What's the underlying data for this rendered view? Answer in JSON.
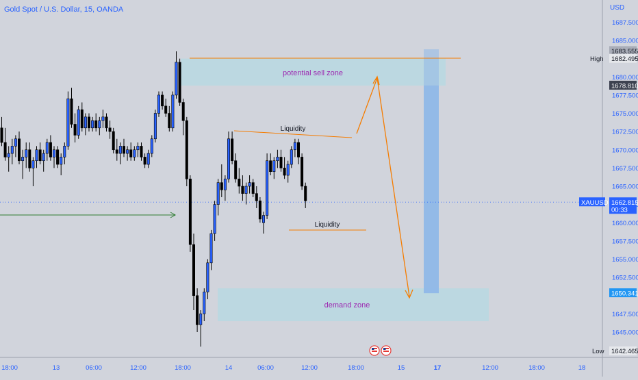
{
  "chart_data": {
    "type": "candlestick",
    "title": "Gold Spot / U.S. Dollar, 15, OANDA",
    "currency": "USD",
    "symbol": "XAUUSD",
    "ylim": [
      1642.5,
      1688.5
    ],
    "y_ticks": [
      "1687.500",
      "1685.000",
      "1680.000",
      "1677.500",
      "1675.000",
      "1672.500",
      "1670.000",
      "1667.500",
      "1665.000",
      "1662.500",
      "1660.000",
      "1657.500",
      "1655.000",
      "1652.500",
      "1647.500",
      "1645.000"
    ],
    "x_ticks": [
      "18:00",
      "13",
      "06:00",
      "12:00",
      "18:00",
      "14",
      "06:00",
      "12:00",
      "18:00",
      "15",
      "17",
      "12:00",
      "18:00",
      "18"
    ],
    "price_labels": {
      "top_value": "1683.555",
      "high_label": "High",
      "high_value": "1682.495",
      "target_value": "1678.810",
      "current_symbol": "XAUUSD",
      "current_value": "1662.815",
      "countdown": "00:33",
      "demand_value": "1650.341",
      "low_label": "Low",
      "low_value": "1642.465"
    },
    "annotations": {
      "sell_zone": "potential sell zone",
      "demand_zone": "demand zone",
      "liquidity_top": "Liquidity",
      "liquidity_bottom": "Liquidity"
    },
    "colors": {
      "background": "#d1d4dc",
      "candle_up": "#2962ff",
      "candle_down": "#000000",
      "zone_fill": "#b9d8e2",
      "orange": "#f57c00",
      "zone_text": "#9c27b0",
      "axis_text": "#2962ff",
      "green_arrow": "#2e7d32",
      "target_bar": "#90b8e8"
    },
    "candles": [
      [
        1673,
        1674.5,
        1670.5,
        1671
      ],
      [
        1671,
        1673,
        1668.5,
        1669
      ],
      [
        1669,
        1670.5,
        1667,
        1669.5
      ],
      [
        1669.5,
        1671.5,
        1668,
        1670.5
      ],
      [
        1670.5,
        1672,
        1669,
        1671.5
      ],
      [
        1671.5,
        1672.5,
        1668,
        1668.5
      ],
      [
        1668.5,
        1670,
        1666,
        1669
      ],
      [
        1669,
        1671,
        1667.5,
        1670
      ],
      [
        1670,
        1671,
        1667,
        1667.5
      ],
      [
        1667.5,
        1669,
        1665,
        1668.5
      ],
      [
        1668.5,
        1670.5,
        1667.5,
        1670
      ],
      [
        1670,
        1671,
        1668,
        1668.5
      ],
      [
        1668.5,
        1670,
        1667,
        1669.5
      ],
      [
        1669.5,
        1671.5,
        1668.5,
        1671
      ],
      [
        1671,
        1672,
        1668.5,
        1669
      ],
      [
        1669,
        1670.5,
        1667.5,
        1670
      ],
      [
        1670,
        1670.5,
        1667.5,
        1668
      ],
      [
        1668,
        1669.5,
        1666.5,
        1669
      ],
      [
        1669,
        1671,
        1668,
        1670.5
      ],
      [
        1670.5,
        1678,
        1670,
        1677
      ],
      [
        1677,
        1678.5,
        1673,
        1673.5
      ],
      [
        1673.5,
        1675,
        1671,
        1672
      ],
      [
        1672,
        1676,
        1671.5,
        1675.5
      ],
      [
        1675.5,
        1676.5,
        1672.5,
        1673
      ],
      [
        1673,
        1675,
        1672,
        1674.5
      ],
      [
        1674.5,
        1675,
        1672.5,
        1673
      ],
      [
        1673,
        1674.5,
        1672.5,
        1674
      ],
      [
        1674,
        1675,
        1672.5,
        1673
      ],
      [
        1673,
        1674.5,
        1672,
        1674
      ],
      [
        1674,
        1675.5,
        1673,
        1674.5
      ],
      [
        1674.5,
        1675,
        1672.5,
        1673
      ],
      [
        1673,
        1674,
        1671.5,
        1672.5
      ],
      [
        1672.5,
        1673,
        1669.5,
        1670
      ],
      [
        1670,
        1671.5,
        1668.5,
        1669.5
      ],
      [
        1669.5,
        1671,
        1668,
        1670.5
      ],
      [
        1670.5,
        1671.5,
        1669,
        1669.5
      ],
      [
        1669.5,
        1670.5,
        1668.5,
        1670
      ],
      [
        1670,
        1671,
        1668.5,
        1669
      ],
      [
        1669,
        1670.5,
        1668.5,
        1670
      ],
      [
        1670,
        1671,
        1669,
        1670.5
      ],
      [
        1670.5,
        1671,
        1668.5,
        1669
      ],
      [
        1669,
        1669.5,
        1667.5,
        1668
      ],
      [
        1668,
        1670,
        1667.5,
        1669.5
      ],
      [
        1669.5,
        1672,
        1669,
        1671.5
      ],
      [
        1671.5,
        1675.5,
        1671,
        1675
      ],
      [
        1675,
        1678,
        1674.5,
        1677.5
      ],
      [
        1677.5,
        1678,
        1675.5,
        1676
      ],
      [
        1676,
        1677,
        1674.5,
        1675
      ],
      [
        1675,
        1676,
        1672.5,
        1673
      ],
      [
        1673,
        1678,
        1672.5,
        1677.5
      ],
      [
        1677.5,
        1683.5,
        1677,
        1682
      ],
      [
        1682,
        1682.5,
        1676,
        1676.5
      ],
      [
        1676.5,
        1677,
        1672,
        1674
      ],
      [
        1674,
        1674.5,
        1665,
        1666
      ],
      [
        1666,
        1666.5,
        1656,
        1657
      ],
      [
        1657,
        1658.5,
        1648,
        1650
      ],
      [
        1650,
        1651,
        1645,
        1646
      ],
      [
        1646,
        1648,
        1643,
        1647.5
      ],
      [
        1647.5,
        1651,
        1646.5,
        1650.5
      ],
      [
        1650.5,
        1655,
        1649.5,
        1654.5
      ],
      [
        1654.5,
        1659,
        1653.5,
        1658.5
      ],
      [
        1658.5,
        1663,
        1657.5,
        1662.5
      ],
      [
        1662.5,
        1666,
        1661,
        1665.5
      ],
      [
        1665.5,
        1668,
        1663.5,
        1664.5
      ],
      [
        1664.5,
        1666.5,
        1663,
        1666
      ],
      [
        1666,
        1672.5,
        1665.5,
        1671.5
      ],
      [
        1671.5,
        1672.5,
        1668,
        1668.5
      ],
      [
        1668.5,
        1669.5,
        1665.5,
        1666
      ],
      [
        1666,
        1667.5,
        1664,
        1665
      ],
      [
        1665,
        1666.5,
        1663,
        1664
      ],
      [
        1664,
        1665.5,
        1662.5,
        1665
      ],
      [
        1665,
        1666.5,
        1664,
        1665.5
      ],
      [
        1665.5,
        1666,
        1663.5,
        1664
      ],
      [
        1664,
        1665,
        1662,
        1663
      ],
      [
        1663,
        1663.5,
        1660,
        1660.5
      ],
      [
        1660,
        1661.5,
        1658.5,
        1661
      ],
      [
        1661,
        1669.5,
        1660.5,
        1668.5
      ],
      [
        1668.5,
        1669.5,
        1666.5,
        1667
      ],
      [
        1667,
        1669,
        1666,
        1668.5
      ],
      [
        1668.5,
        1670,
        1667.5,
        1669
      ],
      [
        1669,
        1670,
        1667,
        1667.5
      ],
      [
        1667.5,
        1669,
        1666,
        1666.5
      ],
      [
        1666.5,
        1668.5,
        1665.5,
        1668
      ],
      [
        1668,
        1670.5,
        1667.5,
        1670
      ],
      [
        1670,
        1671.5,
        1669,
        1671
      ],
      [
        1671,
        1671.5,
        1668,
        1669
      ],
      [
        1669,
        1669.5,
        1664.5,
        1665
      ],
      [
        1665,
        1665.5,
        1662,
        1663
      ]
    ]
  }
}
